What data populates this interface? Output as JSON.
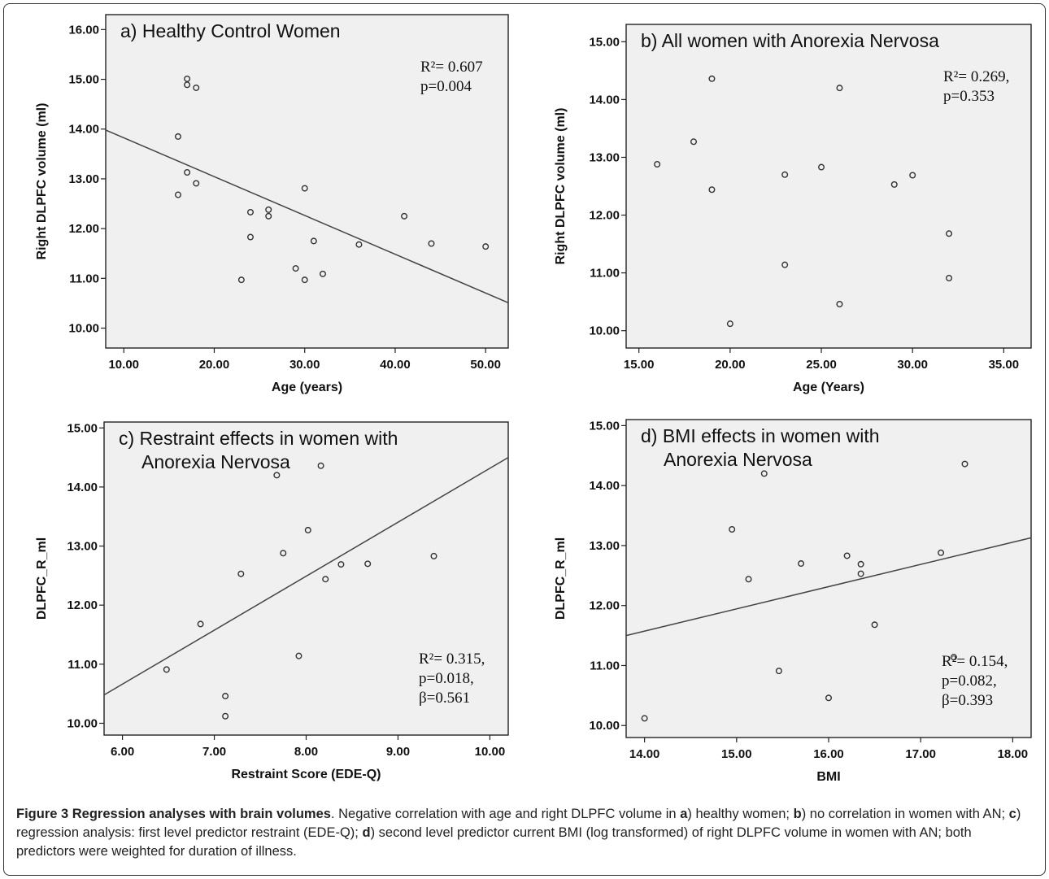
{
  "panels": [
    {
      "id": "a",
      "title_lines": [
        "a) Healthy Control Women"
      ],
      "stats_lines": [
        "R²= 0.607",
        "p=0.004"
      ],
      "xlabel": "Age (years)",
      "ylabel": "Right DLPFC volume (ml)",
      "xlim": [
        8,
        52.5
      ],
      "ylim": [
        9.6,
        16.3
      ],
      "xticks": [
        10,
        20,
        30,
        40,
        50
      ],
      "yticks": [
        10,
        11,
        12,
        13,
        14,
        15,
        16
      ],
      "points": [
        {
          "x": 16,
          "y": 13.85
        },
        {
          "x": 16,
          "y": 12.68
        },
        {
          "x": 17,
          "y": 15.01
        },
        {
          "x": 17,
          "y": 14.89
        },
        {
          "x": 17,
          "y": 13.13
        },
        {
          "x": 18,
          "y": 14.83
        },
        {
          "x": 18,
          "y": 12.91
        },
        {
          "x": 23,
          "y": 10.97
        },
        {
          "x": 24,
          "y": 12.33
        },
        {
          "x": 24,
          "y": 11.83
        },
        {
          "x": 26,
          "y": 12.38
        },
        {
          "x": 26,
          "y": 12.25
        },
        {
          "x": 29,
          "y": 11.2
        },
        {
          "x": 30,
          "y": 12.81
        },
        {
          "x": 30,
          "y": 10.97
        },
        {
          "x": 31,
          "y": 11.75
        },
        {
          "x": 32,
          "y": 11.09
        },
        {
          "x": 36,
          "y": 11.68
        },
        {
          "x": 41,
          "y": 12.25
        },
        {
          "x": 44,
          "y": 11.7
        },
        {
          "x": 50,
          "y": 11.64
        }
      ],
      "fit": {
        "x": [
          8,
          52.5
        ],
        "y": [
          13.98,
          10.51
        ]
      }
    },
    {
      "id": "b",
      "title_lines": [
        "b) All women with Anorexia Nervosa"
      ],
      "stats_lines": [
        "R²= 0.269,",
        "p=0.353"
      ],
      "xlabel": "Age (Years)",
      "ylabel": "Right DLPFC volume (ml)",
      "xlim": [
        14.3,
        36.5
      ],
      "ylim": [
        9.7,
        15.3
      ],
      "xticks": [
        15,
        20,
        25,
        30,
        35
      ],
      "yticks": [
        10,
        11,
        12,
        13,
        14,
        15
      ],
      "points": [
        {
          "x": 16,
          "y": 12.88
        },
        {
          "x": 18,
          "y": 13.27
        },
        {
          "x": 19,
          "y": 14.36
        },
        {
          "x": 19,
          "y": 12.44
        },
        {
          "x": 20,
          "y": 10.12
        },
        {
          "x": 23,
          "y": 12.7
        },
        {
          "x": 23,
          "y": 11.14
        },
        {
          "x": 25,
          "y": 12.83
        },
        {
          "x": 26,
          "y": 14.2
        },
        {
          "x": 26,
          "y": 10.46
        },
        {
          "x": 29,
          "y": 12.53
        },
        {
          "x": 30,
          "y": 12.69
        },
        {
          "x": 32,
          "y": 11.68
        },
        {
          "x": 32,
          "y": 10.91
        }
      ],
      "fit": null
    },
    {
      "id": "c",
      "title_lines": [
        "c) Restraint effects in women with",
        "Anorexia Nervosa"
      ],
      "stats_lines": [
        "R²= 0.315,",
        "p=0.018,",
        "β=0.561"
      ],
      "xlabel": "Restraint Score (EDE-Q)",
      "ylabel": "DLPFC_R_ml",
      "xlim": [
        5.8,
        10.2
      ],
      "ylim": [
        9.8,
        15.1
      ],
      "xticks": [
        6,
        7,
        8,
        9,
        10
      ],
      "yticks": [
        10,
        11,
        12,
        13,
        14,
        15
      ],
      "points": [
        {
          "x": 6.48,
          "y": 10.91
        },
        {
          "x": 6.85,
          "y": 11.68
        },
        {
          "x": 7.12,
          "y": 10.46
        },
        {
          "x": 7.12,
          "y": 10.12
        },
        {
          "x": 7.29,
          "y": 12.53
        },
        {
          "x": 7.68,
          "y": 14.2
        },
        {
          "x": 7.75,
          "y": 12.88
        },
        {
          "x": 7.92,
          "y": 11.14
        },
        {
          "x": 8.02,
          "y": 13.27
        },
        {
          "x": 8.16,
          "y": 14.36
        },
        {
          "x": 8.21,
          "y": 12.44
        },
        {
          "x": 8.38,
          "y": 12.69
        },
        {
          "x": 8.67,
          "y": 12.7
        },
        {
          "x": 9.39,
          "y": 12.83
        }
      ],
      "fit": {
        "x": [
          5.8,
          10.2
        ],
        "y": [
          10.48,
          14.5
        ]
      }
    },
    {
      "id": "d",
      "title_lines": [
        "d) BMI effects in women with",
        "Anorexia Nervosa"
      ],
      "stats_lines": [
        "R²= 0.154,",
        "p=0.082,",
        "β=0.393"
      ],
      "xlabel": "BMI",
      "ylabel": "DLPFC_R_ml",
      "xlim": [
        13.8,
        18.2
      ],
      "ylim": [
        9.8,
        15.1
      ],
      "xticks": [
        14,
        15,
        16,
        17,
        18
      ],
      "yticks": [
        10,
        11,
        12,
        13,
        14,
        15
      ],
      "points": [
        {
          "x": 14.0,
          "y": 10.12
        },
        {
          "x": 14.95,
          "y": 13.27
        },
        {
          "x": 15.13,
          "y": 12.44
        },
        {
          "x": 15.3,
          "y": 14.2
        },
        {
          "x": 15.46,
          "y": 10.91
        },
        {
          "x": 15.7,
          "y": 12.7
        },
        {
          "x": 16.0,
          "y": 10.46
        },
        {
          "x": 16.2,
          "y": 12.83
        },
        {
          "x": 16.35,
          "y": 12.69
        },
        {
          "x": 16.35,
          "y": 12.53
        },
        {
          "x": 16.5,
          "y": 11.68
        },
        {
          "x": 17.22,
          "y": 12.88
        },
        {
          "x": 17.36,
          "y": 11.14
        },
        {
          "x": 17.48,
          "y": 14.36
        }
      ],
      "fit": {
        "x": [
          13.8,
          18.2
        ],
        "y": [
          11.5,
          13.13
        ]
      }
    }
  ],
  "chart_data": [
    {
      "type": "scatter",
      "title": "a) Healthy Control Women",
      "xlabel": "Age (years)",
      "ylabel": "Right DLPFC volume (ml)",
      "xlim": [
        8,
        52.5
      ],
      "ylim": [
        9.6,
        16.3
      ],
      "annotations": [
        "R²= 0.607",
        "p=0.004"
      ],
      "x": [
        16,
        16,
        17,
        17,
        17,
        18,
        18,
        23,
        24,
        24,
        26,
        26,
        29,
        30,
        30,
        31,
        32,
        36,
        41,
        44,
        50
      ],
      "y": [
        13.85,
        12.68,
        15.01,
        14.89,
        13.13,
        14.83,
        12.91,
        10.97,
        12.33,
        11.83,
        12.38,
        12.25,
        11.2,
        12.81,
        10.97,
        11.75,
        11.09,
        11.68,
        12.25,
        11.7,
        11.64
      ],
      "fit_line": {
        "x": [
          8,
          52.5
        ],
        "y": [
          13.98,
          10.51
        ]
      },
      "grid": false
    },
    {
      "type": "scatter",
      "title": "b) All women with Anorexia Nervosa",
      "xlabel": "Age (Years)",
      "ylabel": "Right DLPFC volume (ml)",
      "xlim": [
        14.3,
        36.5
      ],
      "ylim": [
        9.7,
        15.3
      ],
      "annotations": [
        "R²= 0.269,",
        "p=0.353"
      ],
      "x": [
        16,
        18,
        19,
        19,
        20,
        23,
        23,
        25,
        26,
        26,
        29,
        30,
        32,
        32
      ],
      "y": [
        12.88,
        13.27,
        14.36,
        12.44,
        10.12,
        12.7,
        11.14,
        12.83,
        14.2,
        10.46,
        12.53,
        12.69,
        11.68,
        10.91
      ],
      "grid": false
    },
    {
      "type": "scatter",
      "title": "c) Restraint effects in women with Anorexia Nervosa",
      "xlabel": "Restraint Score (EDE-Q)",
      "ylabel": "DLPFC_R_ml",
      "xlim": [
        5.8,
        10.2
      ],
      "ylim": [
        9.8,
        15.1
      ],
      "annotations": [
        "R²= 0.315,",
        "p=0.018,",
        "β=0.561"
      ],
      "x": [
        6.48,
        6.85,
        7.12,
        7.12,
        7.29,
        7.68,
        7.75,
        7.92,
        8.02,
        8.16,
        8.21,
        8.38,
        8.67,
        9.39
      ],
      "y": [
        10.91,
        11.68,
        10.46,
        10.12,
        12.53,
        14.2,
        12.88,
        11.14,
        13.27,
        14.36,
        12.44,
        12.69,
        12.7,
        12.83
      ],
      "fit_line": {
        "x": [
          5.8,
          10.2
        ],
        "y": [
          10.48,
          14.5
        ]
      },
      "grid": false
    },
    {
      "type": "scatter",
      "title": "d) BMI effects in women with Anorexia Nervosa",
      "xlabel": "BMI",
      "ylabel": "DLPFC_R_ml",
      "xlim": [
        13.8,
        18.2
      ],
      "ylim": [
        9.8,
        15.1
      ],
      "annotations": [
        "R²= 0.154,",
        "p=0.082,",
        "β=0.393"
      ],
      "x": [
        14.0,
        14.95,
        15.13,
        15.3,
        15.46,
        15.7,
        16.0,
        16.2,
        16.35,
        16.35,
        16.5,
        17.22,
        17.36,
        17.48
      ],
      "y": [
        10.12,
        13.27,
        12.44,
        14.2,
        10.91,
        12.7,
        10.46,
        12.83,
        12.69,
        12.53,
        11.68,
        12.88,
        11.14,
        14.36
      ],
      "fit_line": {
        "x": [
          13.8,
          18.2
        ],
        "y": [
          11.5,
          13.13
        ]
      },
      "grid": false
    }
  ],
  "caption": {
    "title": "Figure 3 Regression analyses with brain volumes",
    "segments": [
      {
        "t": ". Negative correlation with age and right DLPFC volume in ",
        "b": false
      },
      {
        "t": "a",
        "b": true
      },
      {
        "t": ") healthy women; ",
        "b": false
      },
      {
        "t": "b",
        "b": true
      },
      {
        "t": ") no correlation in women with AN; ",
        "b": false
      },
      {
        "t": "c",
        "b": true
      },
      {
        "t": ") regression analysis: first level predictor restraint (EDE-Q); ",
        "b": false
      },
      {
        "t": "d",
        "b": true
      },
      {
        "t": ") second level predictor current BMI (log transformed) of right DLPFC volume in women with AN; both predictors were weighted for duration of illness.",
        "b": false
      }
    ]
  },
  "colors": {
    "plot_background": "#f0f0f0",
    "frame": "#222222",
    "marker": "#333333",
    "fit_line": "#444444"
  },
  "tick_decimals": 2
}
